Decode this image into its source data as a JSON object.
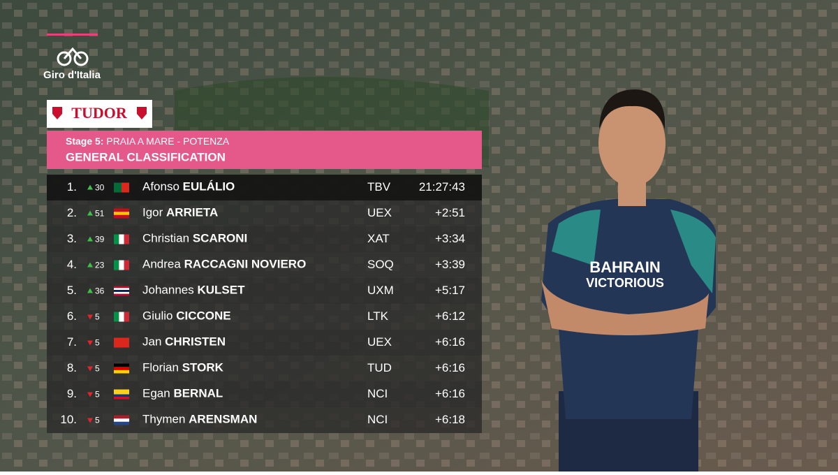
{
  "logo": "Giro d'Italia",
  "sponsor": "TUDOR",
  "stage_label": "Stage 5:",
  "stage_route": "PRAIA A MARE - POTENZA",
  "title": "GENERAL CLASSIFICATION",
  "rows": [
    {
      "rank": "1.",
      "direction": "up",
      "change": 30,
      "flag": {
        "stripes": "v",
        "colors": [
          "#046a38",
          "#da291c"
        ]
      },
      "first": "Afonso",
      "last": "EULÁLIO",
      "team": "TBV",
      "time": "21:27:43"
    },
    {
      "rank": "2.",
      "direction": "up",
      "change": 51,
      "flag": {
        "stripes": "h",
        "colors": [
          "#c60b1e",
          "#ffc400",
          "#c60b1e"
        ]
      },
      "first": "Igor",
      "last": "ARRIETA",
      "team": "UEX",
      "time": "+2:51"
    },
    {
      "rank": "3.",
      "direction": "up",
      "change": 39,
      "flag": {
        "stripes": "v",
        "colors": [
          "#009246",
          "#ffffff",
          "#ce2b37"
        ]
      },
      "first": "Christian",
      "last": "SCARONI",
      "team": "XAT",
      "time": "+3:34"
    },
    {
      "rank": "4.",
      "direction": "up",
      "change": 23,
      "flag": {
        "stripes": "v",
        "colors": [
          "#009246",
          "#ffffff",
          "#ce2b37"
        ]
      },
      "first": "Andrea",
      "last": "RACCAGNI NOVIERO",
      "team": "SOQ",
      "time": "+3:39"
    },
    {
      "rank": "5.",
      "direction": "up",
      "change": 36,
      "flag": {
        "stripes": "h",
        "colors": [
          "#ba0c2f",
          "#ffffff",
          "#00205b",
          "#ffffff",
          "#ba0c2f"
        ]
      },
      "first": "Johannes",
      "last": "KULSET",
      "team": "UXM",
      "time": "+5:17"
    },
    {
      "rank": "6.",
      "direction": "down",
      "change": 5,
      "flag": {
        "stripes": "v",
        "colors": [
          "#009246",
          "#ffffff",
          "#ce2b37"
        ]
      },
      "first": "Giulio",
      "last": "CICCONE",
      "team": "LTK",
      "time": "+6:12"
    },
    {
      "rank": "7.",
      "direction": "down",
      "change": 5,
      "flag": {
        "stripes": "h",
        "colors": [
          "#da291c"
        ]
      },
      "first": "Jan",
      "last": "CHRISTEN",
      "team": "UEX",
      "time": "+6:16"
    },
    {
      "rank": "8.",
      "direction": "down",
      "change": 5,
      "flag": {
        "stripes": "h",
        "colors": [
          "#000000",
          "#dd0000",
          "#ffce00"
        ]
      },
      "first": "Florian",
      "last": "STORK",
      "team": "TUD",
      "time": "+6:16"
    },
    {
      "rank": "9.",
      "direction": "down",
      "change": 5,
      "flag": {
        "stripes": "h",
        "colors": [
          "#fcd116",
          "#fcd116",
          "#003893",
          "#ce1126"
        ]
      },
      "first": "Egan",
      "last": "BERNAL",
      "team": "NCI",
      "time": "+6:16"
    },
    {
      "rank": "10.",
      "direction": "down",
      "change": 5,
      "flag": {
        "stripes": "h",
        "colors": [
          "#ae1c28",
          "#ffffff",
          "#21468b"
        ]
      },
      "first": "Thymen",
      "last": "ARENSMAN",
      "team": "NCI",
      "time": "+6:18"
    }
  ]
}
